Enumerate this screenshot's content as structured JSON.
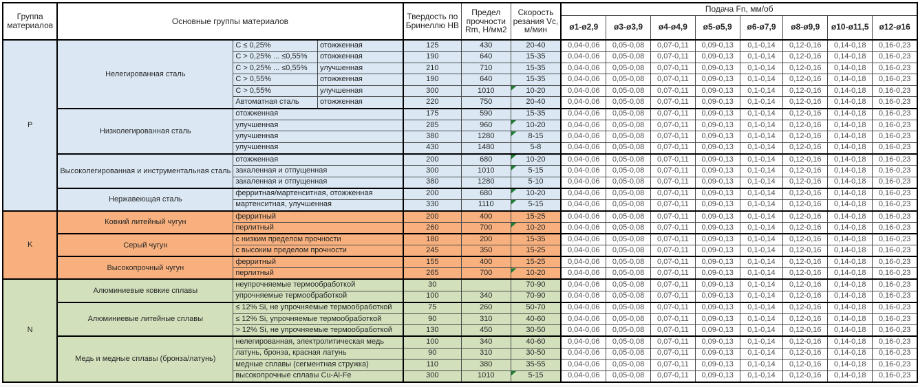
{
  "headers": {
    "group": "Группа материалов",
    "materials": "Основные группы материалов",
    "hb": "Твердость по Бринеллю HB",
    "rm": "Предел прочности Rm, Н/мм2",
    "vc": "Скорость резания Vc, м/мин",
    "feed": "Подача Fn, мм/об",
    "feed_cols": [
      "ø1-ø2,9",
      "ø3-ø3,9",
      "ø4-ø4,9",
      "ø5-ø5,9",
      "ø6-ø7,9",
      "ø8-ø9,9",
      "ø10-ø11,5",
      "ø12-ø16"
    ]
  },
  "feed_row": [
    "0,04-0,06",
    "0,05-0,08",
    "0,07-0,11",
    "0,09-0,13",
    "0,1-0,14",
    "0,12-0,16",
    "0,14-0,18",
    "0,16-0,23"
  ],
  "colors": {
    "section_p": "#dbe8f4",
    "section_k": "#f8b17e",
    "section_n": "#d2e0bc",
    "flag_green": "#1e7e34",
    "grid_line": "#4a4a4a",
    "thick_line": "#000000"
  },
  "sections": [
    {
      "letter": "P",
      "color": "#dbe8f4",
      "groups": [
        {
          "name": "Нелегированная сталь",
          "rows": [
            {
              "d1": "C ≤ 0,25%",
              "d2": "отожженная",
              "hb": "125",
              "rm": "430",
              "vc": "20-40",
              "flag": false
            },
            {
              "d1": "C > 0,25% ... ≤0,55%",
              "d2": "отожженная",
              "hb": "190",
              "rm": "640",
              "vc": "15-35",
              "flag": false
            },
            {
              "d1": "C > 0,25% ... ≤0,55%",
              "d2": "улучшенная",
              "hb": "210",
              "rm": "710",
              "vc": "15-35",
              "flag": false
            },
            {
              "d1": "C > 0,55%",
              "d2": "отожженная",
              "hb": "190",
              "rm": "640",
              "vc": "15-35",
              "flag": false
            },
            {
              "d1": "C > 0,55%",
              "d2": "улучшенная",
              "hb": "300",
              "rm": "1010",
              "vc": "10-20",
              "flag": true
            },
            {
              "d1": "Автоматная сталь",
              "d2": "отожженная",
              "hb": "220",
              "rm": "750",
              "vc": "20-40",
              "flag": false
            }
          ]
        },
        {
          "name": "Низколегированная сталь",
          "rows": [
            {
              "d": "отожженная",
              "hb": "175",
              "rm": "590",
              "vc": "15-35",
              "flag": false
            },
            {
              "d": "улучшенная",
              "hb": "285",
              "rm": "960",
              "vc": "10-20",
              "flag": true
            },
            {
              "d": "улучшенная",
              "hb": "380",
              "rm": "1280",
              "vc": "8-15",
              "flag": true
            },
            {
              "d": "улучшенная",
              "hb": "430",
              "rm": "1480",
              "vc": "5-8",
              "flag": false
            }
          ]
        },
        {
          "name": "Высоколегированная и инструментальная сталь",
          "rows": [
            {
              "d": "отожженная",
              "hb": "200",
              "rm": "680",
              "vc": "10-20",
              "flag": true
            },
            {
              "d": "закаленная и отпущенная",
              "hb": "300",
              "rm": "1010",
              "vc": "5-15",
              "flag": true
            },
            {
              "d": "закаленная и отпущенная",
              "hb": "380",
              "rm": "1280",
              "vc": "5-10",
              "flag": false
            }
          ]
        },
        {
          "name": "Нержавеющая сталь",
          "rows": [
            {
              "d": "ферритная/мартенситная, отожженная",
              "hb": "200",
              "rm": "680",
              "vc": "10-20",
              "flag": true
            },
            {
              "d": "мартенситная, улучшенная",
              "hb": "330",
              "rm": "1110",
              "vc": "5-15",
              "flag": true
            }
          ]
        }
      ]
    },
    {
      "letter": "K",
      "color": "#f8b17e",
      "groups": [
        {
          "name": "Ковкий литейный чугун",
          "rows": [
            {
              "d": "ферритный",
              "hb": "200",
              "rm": "400",
              "vc": "15-25",
              "flag": false
            },
            {
              "d": "перлитный",
              "hb": "260",
              "rm": "700",
              "vc": "10-20",
              "flag": true
            }
          ]
        },
        {
          "name": "Серый чугун",
          "rows": [
            {
              "d": "с низким пределом прочности",
              "hb": "180",
              "rm": "200",
              "vc": "15-35",
              "flag": false
            },
            {
              "d": "с высоким пределом прочности",
              "hb": "245",
              "rm": "350",
              "vc": "15-25",
              "flag": false
            }
          ]
        },
        {
          "name": "Высокопрочный чугун",
          "rows": [
            {
              "d": "ферритный",
              "hb": "155",
              "rm": "400",
              "vc": "15-25",
              "flag": false
            },
            {
              "d": "перлитный",
              "hb": "265",
              "rm": "700",
              "vc": "10-20",
              "flag": true
            }
          ]
        }
      ]
    },
    {
      "letter": "N",
      "color": "#d2e0bc",
      "groups": [
        {
          "name": "Алюминиевые ковкие сплавы",
          "rows": [
            {
              "d": "неупрочняемые термообработкой",
              "hb": "30",
              "rm": "",
              "vc": "70-90",
              "flag": false
            },
            {
              "d": "упрочняемые термообработкой",
              "hb": "100",
              "rm": "340",
              "vc": "70-90",
              "flag": false
            }
          ]
        },
        {
          "name": "Алюминиевые литейные сплавы",
          "rows": [
            {
              "d": "≤ 12% Si, не упрочняемые термообработкой",
              "hb": "75",
              "rm": "260",
              "vc": "50-70",
              "flag": false
            },
            {
              "d": "≤ 12% Si, упрочняемые термообработкой",
              "hb": "90",
              "rm": "310",
              "vc": "40-60",
              "flag": false
            },
            {
              "d": "> 12% Si, не упрочняемые термообработкой",
              "hb": "130",
              "rm": "450",
              "vc": "30-50",
              "flag": false
            }
          ]
        },
        {
          "name": "Медь и медные сплавы (бронза/латунь)",
          "rows": [
            {
              "d": "нелегированная, электролитическая медь",
              "hb": "100",
              "rm": "340",
              "vc": "40-60",
              "flag": false
            },
            {
              "d": "латунь, бронза, красная латунь",
              "hb": "90",
              "rm": "310",
              "vc": "30-50",
              "flag": false
            },
            {
              "d": "медные сплавы (сегментная стружка)",
              "hb": "110",
              "rm": "380",
              "vc": "35-55",
              "flag": false
            },
            {
              "d": "высокопрочные сплавы Cu-Al-Fe",
              "hb": "300",
              "rm": "1010",
              "vc": "5-15",
              "flag": true
            }
          ]
        }
      ]
    }
  ]
}
